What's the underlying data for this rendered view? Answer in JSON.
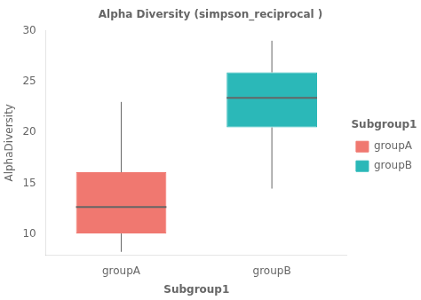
{
  "chart_data": {
    "type": "box",
    "title": "Alpha Diversity (simpson_reciprocal )",
    "x_label": "Subgroup1",
    "y_label": "AlphaDiversity",
    "categories": [
      "groupA",
      "groupB"
    ],
    "whisker_low": [
      8.3,
      14.5
    ],
    "q1": [
      10.1,
      20.5
    ],
    "median": [
      12.7,
      23.4
    ],
    "q3": [
      16.1,
      25.9
    ],
    "whisker_high": [
      23.0,
      29.0
    ],
    "colors": [
      "#F07870",
      "#2BB8B8"
    ],
    "ylim": [
      8,
      30
    ],
    "yticks": [
      10,
      15,
      20,
      25,
      30
    ],
    "grid": false,
    "legend": "right",
    "legend_title": "Subgroup1"
  }
}
